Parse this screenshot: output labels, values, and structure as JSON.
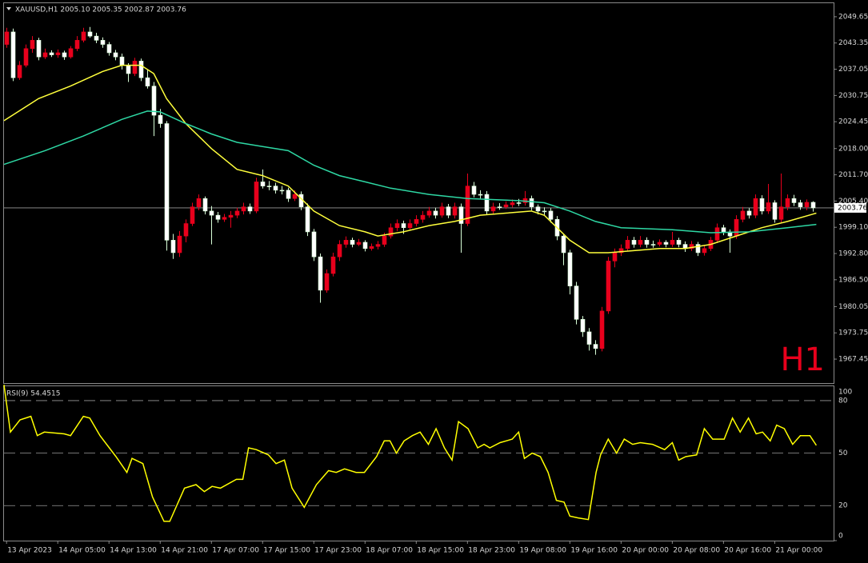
{
  "chart_data": {
    "type": "candlestick",
    "title": "XAUUSD,H1  2005.10 2005.35 2002.87 2003.76",
    "watermark": "H1",
    "up_color": "#e8001c",
    "down_color": "#ffffff",
    "wick_color": "#d8ffd8",
    "xlim": [
      -0.4,
      129.2
    ],
    "ylim": [
      1961.7,
      2052.9
    ],
    "yticks": [
      2049.65,
      2043.35,
      2037.05,
      2030.75,
      2024.45,
      {
        "value": 2018,
        "label": "2018.00"
      },
      {
        "value": 2011.7,
        "label": "2011.70"
      },
      {
        "value": 2005.4,
        "label": "2005.40"
      },
      {
        "value": 1999.1,
        "label": "1999.10"
      },
      {
        "value": 1992.8,
        "label": "1992.80"
      },
      {
        "value": 1986.5,
        "label": "1986.50"
      },
      1980.05,
      1973.75,
      1967.45
    ],
    "xticks": [
      {
        "value": 0,
        "label": "13 Apr 2023"
      },
      {
        "value": 8,
        "label": "14 Apr 05:00"
      },
      {
        "value": 16,
        "label": "14 Apr 13:00"
      },
      {
        "value": 24,
        "label": "14 Apr 21:00"
      },
      {
        "value": 32,
        "label": "17 Apr 07:00"
      },
      {
        "value": 40,
        "label": "17 Apr 15:00"
      },
      {
        "value": 48,
        "label": "17 Apr 23:00"
      },
      {
        "value": 56,
        "label": "18 Apr 07:00"
      },
      {
        "value": 64,
        "label": "18 Apr 15:00"
      },
      {
        "value": 72,
        "label": "18 Apr 23:00"
      },
      {
        "value": 80,
        "label": "19 Apr 08:00"
      },
      {
        "value": 88,
        "label": "19 Apr 16:00"
      },
      {
        "value": 96,
        "label": "20 Apr 00:00"
      },
      {
        "value": 104,
        "label": "20 Apr 08:00"
      },
      {
        "value": 112,
        "label": "20 Apr 16:00"
      },
      {
        "value": 120,
        "label": "21 Apr 00:00"
      }
    ],
    "last_price": {
      "value": 2003.76,
      "label": "2003.76"
    },
    "ohlc": [
      [
        2043,
        2047,
        2042.2,
        2046
      ],
      [
        2046,
        2046.8,
        2034.2,
        2035
      ],
      [
        2035,
        2039,
        2034.5,
        2038
      ],
      [
        2038,
        2043,
        2037.5,
        2042
      ],
      [
        2042,
        2045,
        2041,
        2044
      ],
      [
        2044,
        2044.6,
        2039.2,
        2040
      ],
      [
        2040,
        2042,
        2039.5,
        2041
      ],
      [
        2041,
        2041.6,
        2040,
        2040.5
      ],
      [
        2040.5,
        2041.8,
        2039.8,
        2041
      ],
      [
        2041,
        2041.5,
        2039.3,
        2040
      ],
      [
        2040,
        2042.6,
        2039.6,
        2042
      ],
      [
        2042,
        2045,
        2041.4,
        2044
      ],
      [
        2044,
        2047,
        2043.5,
        2046
      ],
      [
        2046,
        2047.2,
        2044.6,
        2045
      ],
      [
        2045,
        2045.8,
        2043.3,
        2044
      ],
      [
        2044,
        2044.7,
        2042.2,
        2043
      ],
      [
        2043,
        2043.6,
        2040.3,
        2041
      ],
      [
        2041,
        2041.7,
        2039.2,
        2040
      ],
      [
        2040,
        2040.8,
        2037,
        2038
      ],
      [
        2038,
        2038.5,
        2034,
        2036
      ],
      [
        2036,
        2039.8,
        2035.4,
        2039
      ],
      [
        2039,
        2039.6,
        2034.2,
        2035
      ],
      [
        2035,
        2037,
        2032.4,
        2033
      ],
      [
        2033,
        2034,
        2021,
        2026
      ],
      [
        2026,
        2027.5,
        2023,
        2024
      ],
      [
        2024,
        2024.6,
        1993.5,
        1996
      ],
      [
        1996,
        1997.5,
        1991.5,
        1993
      ],
      [
        1993,
        1998.2,
        1992,
        1997
      ],
      [
        1997,
        2001,
        1995.5,
        2000
      ],
      [
        2000,
        2005,
        1999.4,
        2004
      ],
      [
        2004,
        2007,
        2003.2,
        2006
      ],
      [
        2006,
        2006.5,
        2002.2,
        2003
      ],
      [
        2003,
        2004.2,
        1995,
        2002
      ],
      [
        2002,
        2002.8,
        2000.2,
        2001
      ],
      [
        2001,
        2002.3,
        2000.4,
        2001.5
      ],
      [
        2001.5,
        2003,
        1999,
        2002
      ],
      [
        2002,
        2003.8,
        2001.3,
        2003
      ],
      [
        2003,
        2005,
        2002.2,
        2004
      ],
      [
        2004,
        2004.8,
        2002.3,
        2003
      ],
      [
        2003,
        2011,
        2002.5,
        2010
      ],
      [
        2010,
        2013,
        2008.4,
        2009
      ],
      [
        2009,
        2010.2,
        2008,
        2009
      ],
      [
        2009,
        2009.8,
        2007.2,
        2008
      ],
      [
        2008,
        2009,
        2007,
        2008
      ],
      [
        2008,
        2008.6,
        2005.2,
        2006
      ],
      [
        2006,
        2008,
        2005.4,
        2007
      ],
      [
        2007,
        2007.7,
        2003.2,
        2004
      ],
      [
        2004,
        2004.8,
        1997,
        1998
      ],
      [
        1998,
        1998.7,
        1991,
        1992
      ],
      [
        1992,
        1992.8,
        1981,
        1984
      ],
      [
        1984,
        1989,
        1983.4,
        1988
      ],
      [
        1988,
        1993,
        1987.3,
        1992
      ],
      [
        1992,
        1996,
        1991,
        1995
      ],
      [
        1995,
        1996.9,
        1994.2,
        1996
      ],
      [
        1996,
        1996.6,
        1994.3,
        1995
      ],
      [
        1995,
        1996.3,
        1994.6,
        1995.5
      ],
      [
        1995.5,
        1996,
        1993.3,
        1994
      ],
      [
        1994,
        1995.2,
        1993.5,
        1994.5
      ],
      [
        1994.5,
        1995.8,
        1993.8,
        1995
      ],
      [
        1995,
        1997.8,
        1994.4,
        1997
      ],
      [
        1997,
        2000,
        1996.4,
        1999
      ],
      [
        1999,
        2001,
        1998.2,
        2000
      ],
      [
        2000,
        2000.7,
        1997.5,
        1999
      ],
      [
        1999,
        2001,
        1998.3,
        2000
      ],
      [
        2000,
        2002,
        1999.3,
        2001
      ],
      [
        2001,
        2003,
        2000.2,
        2002
      ],
      [
        2002,
        2004,
        2001.4,
        2003
      ],
      [
        2003,
        2003.8,
        2001.2,
        2002
      ],
      [
        2002,
        2005,
        2001.4,
        2004
      ],
      [
        2004,
        2004.7,
        2001.3,
        2002
      ],
      [
        2002,
        2005,
        2001.2,
        2004
      ],
      [
        2004,
        2004.8,
        1993,
        2000
      ],
      [
        2000,
        2012,
        1999.4,
        2009
      ],
      [
        2009,
        2010,
        2006.3,
        2007
      ],
      [
        2007,
        2008,
        2006,
        2007
      ],
      [
        2007,
        2007.8,
        2002.2,
        2003
      ],
      [
        2003,
        2005,
        2002.3,
        2004
      ],
      [
        2004,
        2004.9,
        2003.3,
        2004
      ],
      [
        2004,
        2005.3,
        2003.5,
        2004.5
      ],
      [
        2004.5,
        2005.8,
        2003.9,
        2005
      ],
      [
        2005,
        2005.9,
        2004.2,
        2005
      ],
      [
        2005,
        2007.8,
        2004.3,
        2006
      ],
      [
        2006,
        2006.7,
        2003.2,
        2004
      ],
      [
        2004,
        2004.6,
        2002.2,
        2003
      ],
      [
        2003,
        2003.9,
        2002.1,
        2003
      ],
      [
        2003,
        2003.7,
        2000.2,
        2001
      ],
      [
        2001,
        2001.8,
        1996,
        1997
      ],
      [
        1997,
        1997.6,
        1990,
        1993
      ],
      [
        1993,
        1993.7,
        1983,
        1985
      ],
      [
        1985,
        1986,
        1975.8,
        1977
      ],
      [
        1977,
        1977.8,
        1972.8,
        1974
      ],
      [
        1974,
        1974.9,
        1969.5,
        1971
      ],
      [
        1971,
        1972,
        1968.5,
        1970
      ],
      [
        1970,
        1980,
        1969.3,
        1979
      ],
      [
        1979,
        1992,
        1978.3,
        1991
      ],
      [
        1991,
        1994,
        1989.5,
        1993
      ],
      [
        1993,
        1995,
        1992.2,
        1994
      ],
      [
        1994,
        1997,
        1993.3,
        1996
      ],
      [
        1996,
        1996.8,
        1994.2,
        1995
      ],
      [
        1995,
        1997,
        1994.3,
        1996
      ],
      [
        1996,
        1996.7,
        1994.2,
        1995
      ],
      [
        1995,
        1995.9,
        1994.2,
        1995
      ],
      [
        1995,
        1996.2,
        1994.5,
        1995.5
      ],
      [
        1995.5,
        1996,
        1994.3,
        1995
      ],
      [
        1995,
        1998,
        1994.4,
        1996
      ],
      [
        1996,
        1996.6,
        1994.3,
        1995
      ],
      [
        1995,
        1995.7,
        1993.2,
        1994
      ],
      [
        1994,
        1995.8,
        1993.4,
        1995
      ],
      [
        1995,
        1995.6,
        1992.2,
        1993
      ],
      [
        1993,
        1994.9,
        1992.3,
        1994
      ],
      [
        1994,
        1996.8,
        1993.4,
        1996
      ],
      [
        1996,
        2000,
        1995.3,
        1999
      ],
      [
        1999,
        1999.7,
        1997.2,
        1998
      ],
      [
        1998,
        1998.6,
        1993,
        1997
      ],
      [
        1997,
        2002,
        1996.3,
        2001
      ],
      [
        2001,
        2004,
        2000.3,
        2003
      ],
      [
        2003,
        2003.7,
        2001.2,
        2002
      ],
      [
        2002,
        2007,
        2001.3,
        2006
      ],
      [
        2006,
        2006.8,
        2002.2,
        2003
      ],
      [
        2003,
        2009.5,
        2002.3,
        2005
      ],
      [
        2005,
        2005.6,
        2000.2,
        2001
      ],
      [
        2001,
        2012,
        2000.3,
        2004
      ],
      [
        2004,
        2007,
        2003.2,
        2006
      ],
      [
        2006,
        2006.9,
        2004.2,
        2005
      ],
      [
        2005,
        2005.7,
        2003.3,
        2004
      ],
      [
        2004,
        2005.8,
        2003.2,
        2005.1
      ],
      [
        2005.1,
        2005.35,
        2002.87,
        2003.76
      ]
    ],
    "indicators": [
      {
        "color": "#ffff3c",
        "x": [
          -0.4,
          5,
          10,
          15,
          18,
          21,
          23,
          25,
          28,
          32,
          36,
          40,
          44,
          48,
          52,
          56,
          58,
          62,
          66,
          70,
          74,
          78,
          82,
          84,
          86,
          88,
          91,
          94,
          98,
          102,
          106,
          110,
          114,
          118,
          122,
          126.5
        ],
        "values": [
          2024.7,
          2030,
          2033,
          2036.5,
          2038,
          2038,
          2036,
          2030,
          2024,
          2018,
          2013,
          2011.5,
          2009,
          2003,
          1999.5,
          1998,
          1997,
          1998,
          1999.5,
          2000.5,
          2002,
          2002.5,
          2003,
          2002,
          1999,
          1996,
          1993,
          1993,
          1993.5,
          1994,
          1994,
          1995,
          1997,
          1999,
          2000.5,
          2002.5
        ]
      },
      {
        "color": "#2ed8a4",
        "x": [
          -0.4,
          6,
          12,
          18,
          22,
          24,
          28,
          32,
          36,
          40,
          44,
          48,
          52,
          56,
          60,
          66,
          72,
          80,
          84,
          88,
          92,
          96,
          104,
          110,
          116,
          122,
          126.5
        ],
        "values": [
          2014.2,
          2017.5,
          2021,
          2025,
          2027,
          2026.8,
          2024,
          2021.5,
          2019.5,
          2018.5,
          2017.5,
          2014,
          2011.5,
          2010,
          2008.5,
          2007,
          2006,
          2005.5,
          2005,
          2003,
          2000.5,
          1999,
          1998.5,
          1997.8,
          1998,
          1999,
          1999.8
        ]
      }
    ],
    "rsi": {
      "title": "RSI(9) 54.4515",
      "color": "#ffff00",
      "ylim": [
        0,
        88.2
      ],
      "yticks": [
        0,
        20,
        50,
        80
      ],
      "top_label": "100",
      "x": [
        -0.4,
        0.6,
        2.1,
        3.8,
        4.8,
        5.9,
        9,
        10,
        12,
        13,
        14.6,
        17.1,
        18.8,
        19.6,
        21.3,
        22.8,
        24.6,
        25.5,
        27.8,
        29.6,
        30.9,
        32.1,
        33.4,
        35.9,
        36.9,
        37.8,
        39,
        40.9,
        42.1,
        43.4,
        44.6,
        46.5,
        48.4,
        50.3,
        51.5,
        52.8,
        54.6,
        55.9,
        57.8,
        59,
        59.9,
        60.9,
        62.1,
        63.4,
        64.6,
        65.9,
        67.1,
        68.4,
        69.6,
        70.6,
        72.1,
        73.6,
        74.6,
        75.5,
        77.1,
        79,
        80,
        80.9,
        82.1,
        83.4,
        84.6,
        85.9,
        87.1,
        88,
        89.3,
        90.9,
        92.1,
        92.8,
        94,
        95.3,
        96.5,
        97.8,
        99,
        100.9,
        102.8,
        104,
        105,
        106.1,
        107.8,
        109,
        110.3,
        112.1,
        113.4,
        114.6,
        115.9,
        117.1,
        118.1,
        119.3,
        120.3,
        121.5,
        122.8,
        124,
        125.5,
        126.5
      ],
      "values": [
        89,
        62,
        69,
        71,
        60,
        62,
        61,
        60,
        71,
        70,
        60,
        48,
        39,
        47,
        44,
        25,
        11,
        11,
        30,
        32,
        28,
        31,
        30,
        35,
        35,
        53,
        52,
        49,
        44,
        46,
        30,
        19,
        32,
        40,
        39,
        41,
        39,
        39,
        48,
        57,
        57,
        50,
        57,
        60,
        62,
        55,
        64,
        53,
        46,
        68,
        64,
        53,
        55,
        53,
        56,
        58,
        62,
        47,
        50,
        48,
        39,
        23,
        22,
        14,
        13,
        12,
        39,
        49,
        58,
        50,
        58,
        55,
        56,
        55,
        52,
        56,
        46,
        48,
        49,
        64,
        58,
        58,
        70,
        62,
        70,
        61,
        62,
        57,
        66,
        64,
        55,
        60,
        60,
        54.45
      ]
    }
  }
}
